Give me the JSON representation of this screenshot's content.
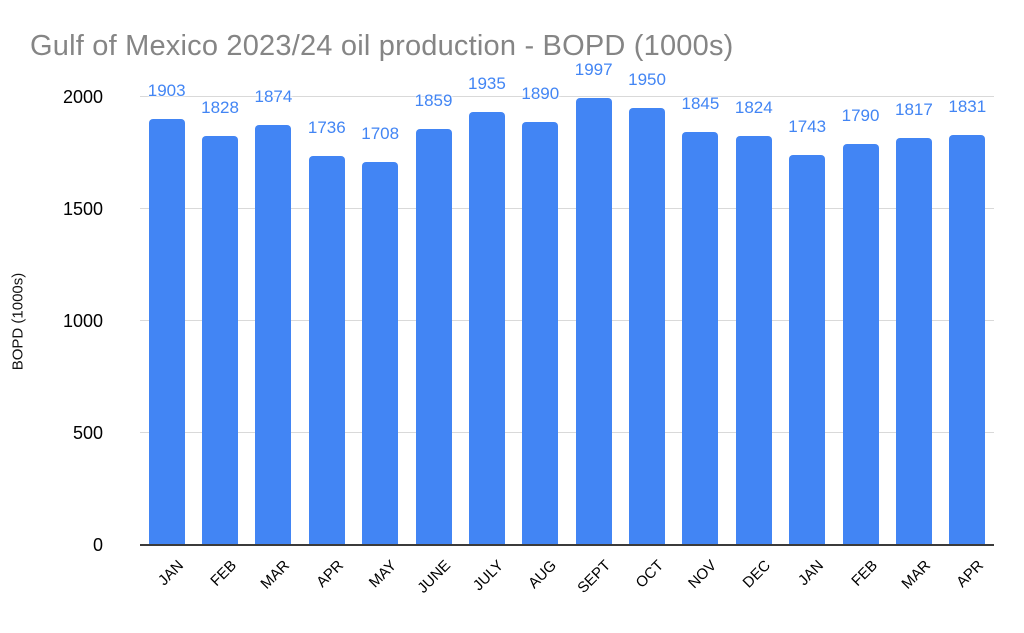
{
  "colors": {
    "bar": "#4285f4",
    "data_label": "#4285f4",
    "title_text": "#858585",
    "axis_text": "#000000",
    "gridline": "#d9d9d9",
    "axis_line": "#3b3b3b",
    "background": "#ffffff"
  },
  "chart_data": {
    "type": "bar",
    "title": "Gulf of Mexico 2023/24 oil production - BOPD (1000s)",
    "xlabel": "",
    "ylabel": "BOPD (1000s)",
    "categories": [
      "JAN",
      "FEB",
      "MAR",
      "APR",
      "MAY",
      "JUNE",
      "JULY",
      "AUG",
      "SEPT",
      "OCT",
      "NOV",
      "DEC",
      "JAN",
      "FEB",
      "MAR",
      "APR"
    ],
    "values": [
      1903,
      1828,
      1874,
      1736,
      1708,
      1859,
      1935,
      1890,
      1997,
      1950,
      1845,
      1824,
      1743,
      1790,
      1817,
      1831
    ],
    "data_labels": [
      "1903",
      "1828",
      "1874",
      "1736",
      "1708",
      "1859",
      "1935",
      "1890",
      "1997",
      "1950",
      "1845",
      "1824",
      "1743",
      "1790",
      "1817",
      "1831"
    ],
    "ylim": [
      0,
      2000
    ],
    "yticks": [
      0,
      500,
      1000,
      1500,
      2000
    ],
    "grid": true,
    "legend": "none"
  }
}
